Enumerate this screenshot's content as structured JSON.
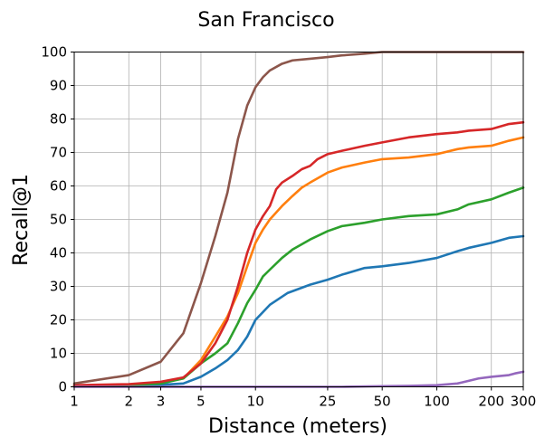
{
  "chart_data": {
    "type": "line",
    "title": "San Francisco",
    "xlabel": "Distance (meters)",
    "ylabel": "Recall@1",
    "xscale": "log",
    "xlim": [
      1,
      300
    ],
    "ylim": [
      0,
      100
    ],
    "grid": true,
    "x_ticks": [
      1,
      2,
      3,
      5,
      10,
      25,
      50,
      100,
      200,
      300
    ],
    "x_tick_labels": [
      "1",
      "2",
      "3",
      "5",
      "10",
      "25",
      "50",
      "100",
      "200",
      "300"
    ],
    "y_ticks": [
      0,
      10,
      20,
      30,
      40,
      50,
      60,
      70,
      80,
      90,
      100
    ],
    "y_tick_labels": [
      "0",
      "10",
      "20",
      "30",
      "40",
      "50",
      "60",
      "70",
      "80",
      "90",
      "100"
    ],
    "series": [
      {
        "color": "#1f77b4",
        "points": [
          [
            1,
            0.2
          ],
          [
            2,
            0.4
          ],
          [
            3,
            0.6
          ],
          [
            4,
            1
          ],
          [
            5,
            3
          ],
          [
            6,
            5.5
          ],
          [
            7,
            8
          ],
          [
            8,
            11
          ],
          [
            9,
            15
          ],
          [
            10,
            20
          ],
          [
            12,
            24.5
          ],
          [
            15,
            28
          ],
          [
            20,
            30.5
          ],
          [
            25,
            32
          ],
          [
            30,
            33.5
          ],
          [
            40,
            35.5
          ],
          [
            50,
            36
          ],
          [
            70,
            37
          ],
          [
            100,
            38.5
          ],
          [
            130,
            40.5
          ],
          [
            150,
            41.5
          ],
          [
            200,
            43
          ],
          [
            250,
            44.5
          ],
          [
            300,
            45
          ]
        ]
      },
      {
        "color": "#ff7f0e",
        "points": [
          [
            1,
            0.4
          ],
          [
            2,
            0.7
          ],
          [
            3,
            1.2
          ],
          [
            4,
            2.5
          ],
          [
            5,
            8
          ],
          [
            6,
            15
          ],
          [
            7,
            21
          ],
          [
            8,
            28
          ],
          [
            9,
            36
          ],
          [
            10,
            43
          ],
          [
            11,
            47
          ],
          [
            12,
            50
          ],
          [
            14,
            54
          ],
          [
            16,
            57
          ],
          [
            18,
            59.5
          ],
          [
            20,
            61
          ],
          [
            25,
            64
          ],
          [
            30,
            65.5
          ],
          [
            40,
            67
          ],
          [
            50,
            68
          ],
          [
            70,
            68.5
          ],
          [
            100,
            69.5
          ],
          [
            130,
            71
          ],
          [
            150,
            71.5
          ],
          [
            200,
            72
          ],
          [
            250,
            73.5
          ],
          [
            300,
            74.5
          ]
        ]
      },
      {
        "color": "#2ca02c",
        "points": [
          [
            1,
            0.3
          ],
          [
            2,
            0.5
          ],
          [
            3,
            1
          ],
          [
            4,
            2.5
          ],
          [
            5,
            7
          ],
          [
            6,
            10
          ],
          [
            7,
            13
          ],
          [
            8,
            19
          ],
          [
            9,
            25
          ],
          [
            10,
            29
          ],
          [
            11,
            33
          ],
          [
            12,
            35
          ],
          [
            14,
            38.5
          ],
          [
            16,
            41
          ],
          [
            20,
            44
          ],
          [
            25,
            46.5
          ],
          [
            30,
            48
          ],
          [
            40,
            49
          ],
          [
            50,
            50
          ],
          [
            70,
            51
          ],
          [
            100,
            51.5
          ],
          [
            130,
            53
          ],
          [
            150,
            54.5
          ],
          [
            200,
            56
          ],
          [
            250,
            58
          ],
          [
            300,
            59.5
          ]
        ]
      },
      {
        "color": "#d62728",
        "points": [
          [
            1,
            0.5
          ],
          [
            2,
            0.8
          ],
          [
            3,
            1.5
          ],
          [
            4,
            2.8
          ],
          [
            5,
            7
          ],
          [
            6,
            13
          ],
          [
            7,
            20
          ],
          [
            8,
            30
          ],
          [
            9,
            40
          ],
          [
            10,
            47
          ],
          [
            11,
            51
          ],
          [
            12,
            54
          ],
          [
            13,
            59
          ],
          [
            14,
            61
          ],
          [
            16,
            63
          ],
          [
            18,
            65
          ],
          [
            20,
            66
          ],
          [
            22,
            68
          ],
          [
            25,
            69.5
          ],
          [
            30,
            70.5
          ],
          [
            40,
            72
          ],
          [
            50,
            73
          ],
          [
            70,
            74.5
          ],
          [
            100,
            75.5
          ],
          [
            130,
            76
          ],
          [
            150,
            76.5
          ],
          [
            200,
            77
          ],
          [
            250,
            78.5
          ],
          [
            300,
            79
          ]
        ]
      },
      {
        "color": "#9467bd",
        "points": [
          [
            1,
            0
          ],
          [
            30,
            0
          ],
          [
            50,
            0.2
          ],
          [
            70,
            0.3
          ],
          [
            100,
            0.5
          ],
          [
            130,
            1
          ],
          [
            150,
            1.8
          ],
          [
            170,
            2.5
          ],
          [
            200,
            3
          ],
          [
            250,
            3.5
          ],
          [
            270,
            4
          ],
          [
            300,
            4.5
          ]
        ]
      },
      {
        "color": "#8c564b",
        "points": [
          [
            1,
            1
          ],
          [
            2,
            3.5
          ],
          [
            3,
            7.5
          ],
          [
            4,
            16
          ],
          [
            5,
            31
          ],
          [
            6,
            45
          ],
          [
            7,
            58
          ],
          [
            8,
            74
          ],
          [
            9,
            84
          ],
          [
            10,
            89.5
          ],
          [
            11,
            92.5
          ],
          [
            12,
            94.5
          ],
          [
            14,
            96.5
          ],
          [
            16,
            97.5
          ],
          [
            20,
            98
          ],
          [
            25,
            98.5
          ],
          [
            30,
            99
          ],
          [
            40,
            99.5
          ],
          [
            50,
            100
          ],
          [
            300,
            100
          ]
        ]
      }
    ]
  }
}
